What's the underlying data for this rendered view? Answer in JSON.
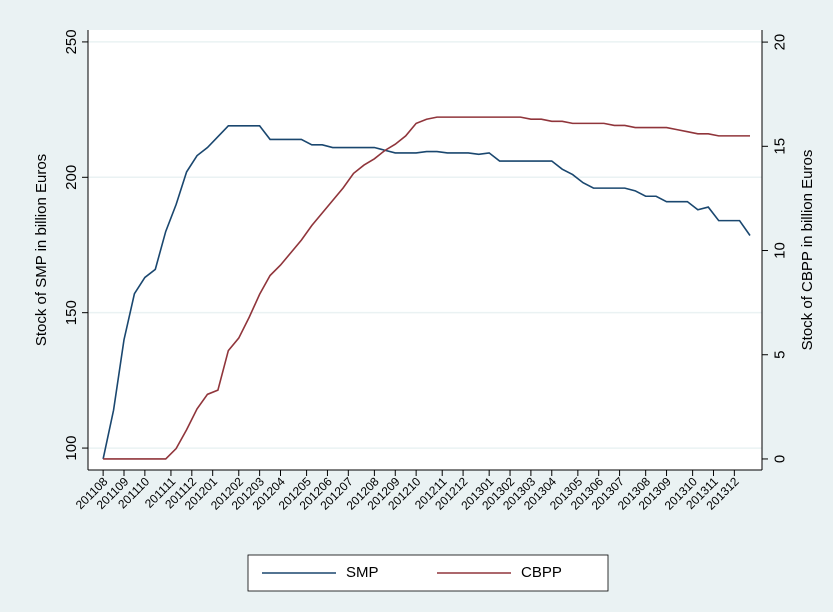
{
  "chart_data": {
    "type": "line",
    "ylabel": "Stock of SMP in billion Euros",
    "y2label": "Stock of CBPP in billion Euros",
    "x": [
      0,
      2,
      4,
      6,
      8,
      10,
      12,
      14,
      16,
      18,
      20,
      22,
      24,
      26,
      28,
      30,
      32,
      34,
      36,
      38,
      40,
      42,
      44,
      46,
      48,
      50,
      52,
      54,
      56,
      58,
      60,
      62,
      64,
      66,
      68,
      70,
      72,
      74,
      76,
      78,
      80,
      82,
      84,
      86,
      88,
      90,
      92,
      94,
      96,
      98,
      100,
      102,
      104,
      106,
      108,
      110,
      112,
      114,
      116,
      118,
      120,
      122,
      124
    ],
    "series": [
      {
        "name": "SMP",
        "color": "#1a476f",
        "axis": "y",
        "values": [
          96,
          114,
          140,
          157,
          163,
          166,
          180,
          190,
          202,
          208,
          211,
          215,
          219,
          219,
          219,
          219,
          214,
          214,
          214,
          214,
          212,
          212,
          211,
          211,
          211,
          211,
          211,
          210,
          209,
          209,
          209,
          209.5,
          209.5,
          209,
          209,
          209,
          208.5,
          209,
          206,
          206,
          206,
          206,
          206,
          206,
          203,
          201,
          198,
          196,
          196,
          196,
          196,
          195,
          193,
          193,
          191,
          191,
          191,
          188,
          189,
          184,
          184,
          184,
          178.5
        ]
      },
      {
        "name": "CBPP",
        "color": "#90353b",
        "axis": "y2",
        "values": [
          0,
          0,
          0,
          0,
          0,
          0,
          0,
          0.5,
          1.4,
          2.4,
          3.1,
          3.3,
          5.2,
          5.8,
          6.8,
          7.9,
          8.8,
          9.3,
          9.9,
          10.5,
          11.2,
          11.8,
          12.4,
          13.0,
          13.7,
          14.1,
          14.4,
          14.8,
          15.1,
          15.5,
          16.1,
          16.3,
          16.4,
          16.4,
          16.4,
          16.4,
          16.4,
          16.4,
          16.4,
          16.4,
          16.4,
          16.3,
          16.3,
          16.2,
          16.2,
          16.1,
          16.1,
          16.1,
          16.1,
          16.0,
          16.0,
          15.9,
          15.9,
          15.9,
          15.9,
          15.8,
          15.7,
          15.6,
          15.6,
          15.5,
          15.5,
          15.5,
          15.5
        ]
      }
    ],
    "xlim": [
      -2.9,
      126.3
    ],
    "xticks": [
      {
        "value": 0,
        "label": "201108"
      },
      {
        "value": 4,
        "label": "201109"
      },
      {
        "value": 8,
        "label": "201110"
      },
      {
        "value": 13,
        "label": "201111"
      },
      {
        "value": 17,
        "label": "201112"
      },
      {
        "value": 21,
        "label": "201201"
      },
      {
        "value": 26,
        "label": "201202"
      },
      {
        "value": 30,
        "label": "201203"
      },
      {
        "value": 34,
        "label": "201204"
      },
      {
        "value": 39,
        "label": "201205"
      },
      {
        "value": 43,
        "label": "201206"
      },
      {
        "value": 47,
        "label": "201207"
      },
      {
        "value": 52,
        "label": "201208"
      },
      {
        "value": 56,
        "label": "201209"
      },
      {
        "value": 60,
        "label": "201210"
      },
      {
        "value": 65,
        "label": "201211"
      },
      {
        "value": 69,
        "label": "201212"
      },
      {
        "value": 74,
        "label": "201301"
      },
      {
        "value": 78,
        "label": "201302"
      },
      {
        "value": 82,
        "label": "201303"
      },
      {
        "value": 86,
        "label": "201304"
      },
      {
        "value": 91,
        "label": "201305"
      },
      {
        "value": 95,
        "label": "201306"
      },
      {
        "value": 99,
        "label": "201307"
      },
      {
        "value": 104,
        "label": "201308"
      },
      {
        "value": 108,
        "label": "201309"
      },
      {
        "value": 113,
        "label": "201310"
      },
      {
        "value": 117,
        "label": "201311"
      },
      {
        "value": 121,
        "label": "201312"
      }
    ],
    "ylim": [
      91.9,
      254.4
    ],
    "yticks": [
      100,
      150,
      200,
      250
    ],
    "y2lim": [
      -0.53,
      20.58
    ],
    "y2ticks": [
      0,
      5,
      10,
      15,
      20
    ],
    "grid": true,
    "legend": "bottom"
  }
}
